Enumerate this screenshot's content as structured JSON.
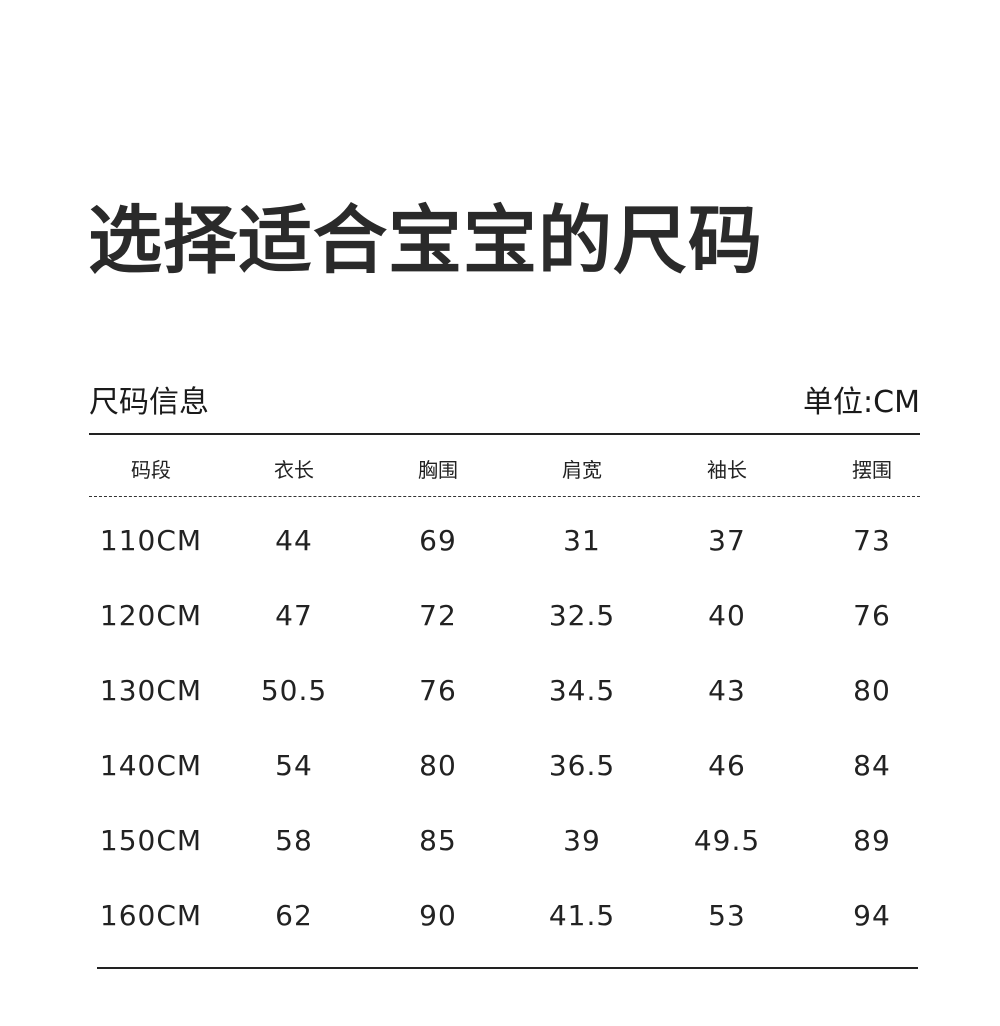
{
  "title": "选择适合宝宝的尺码",
  "section_label": "尺码信息",
  "unit_label": "单位:CM",
  "table": {
    "headers": [
      "码段",
      "衣长",
      "胸围",
      "肩宽",
      "袖长",
      "摆围"
    ],
    "rows": [
      [
        "110CM",
        "44",
        "69",
        "31",
        "37",
        "73"
      ],
      [
        "120CM",
        "47",
        "72",
        "32.5",
        "40",
        "76"
      ],
      [
        "130CM",
        "50.5",
        "76",
        "34.5",
        "43",
        "80"
      ],
      [
        "140CM",
        "54",
        "80",
        "36.5",
        "46",
        "84"
      ],
      [
        "150CM",
        "58",
        "85",
        "39",
        "49.5",
        "89"
      ],
      [
        "160CM",
        "62",
        "90",
        "41.5",
        "53",
        "94"
      ]
    ]
  }
}
